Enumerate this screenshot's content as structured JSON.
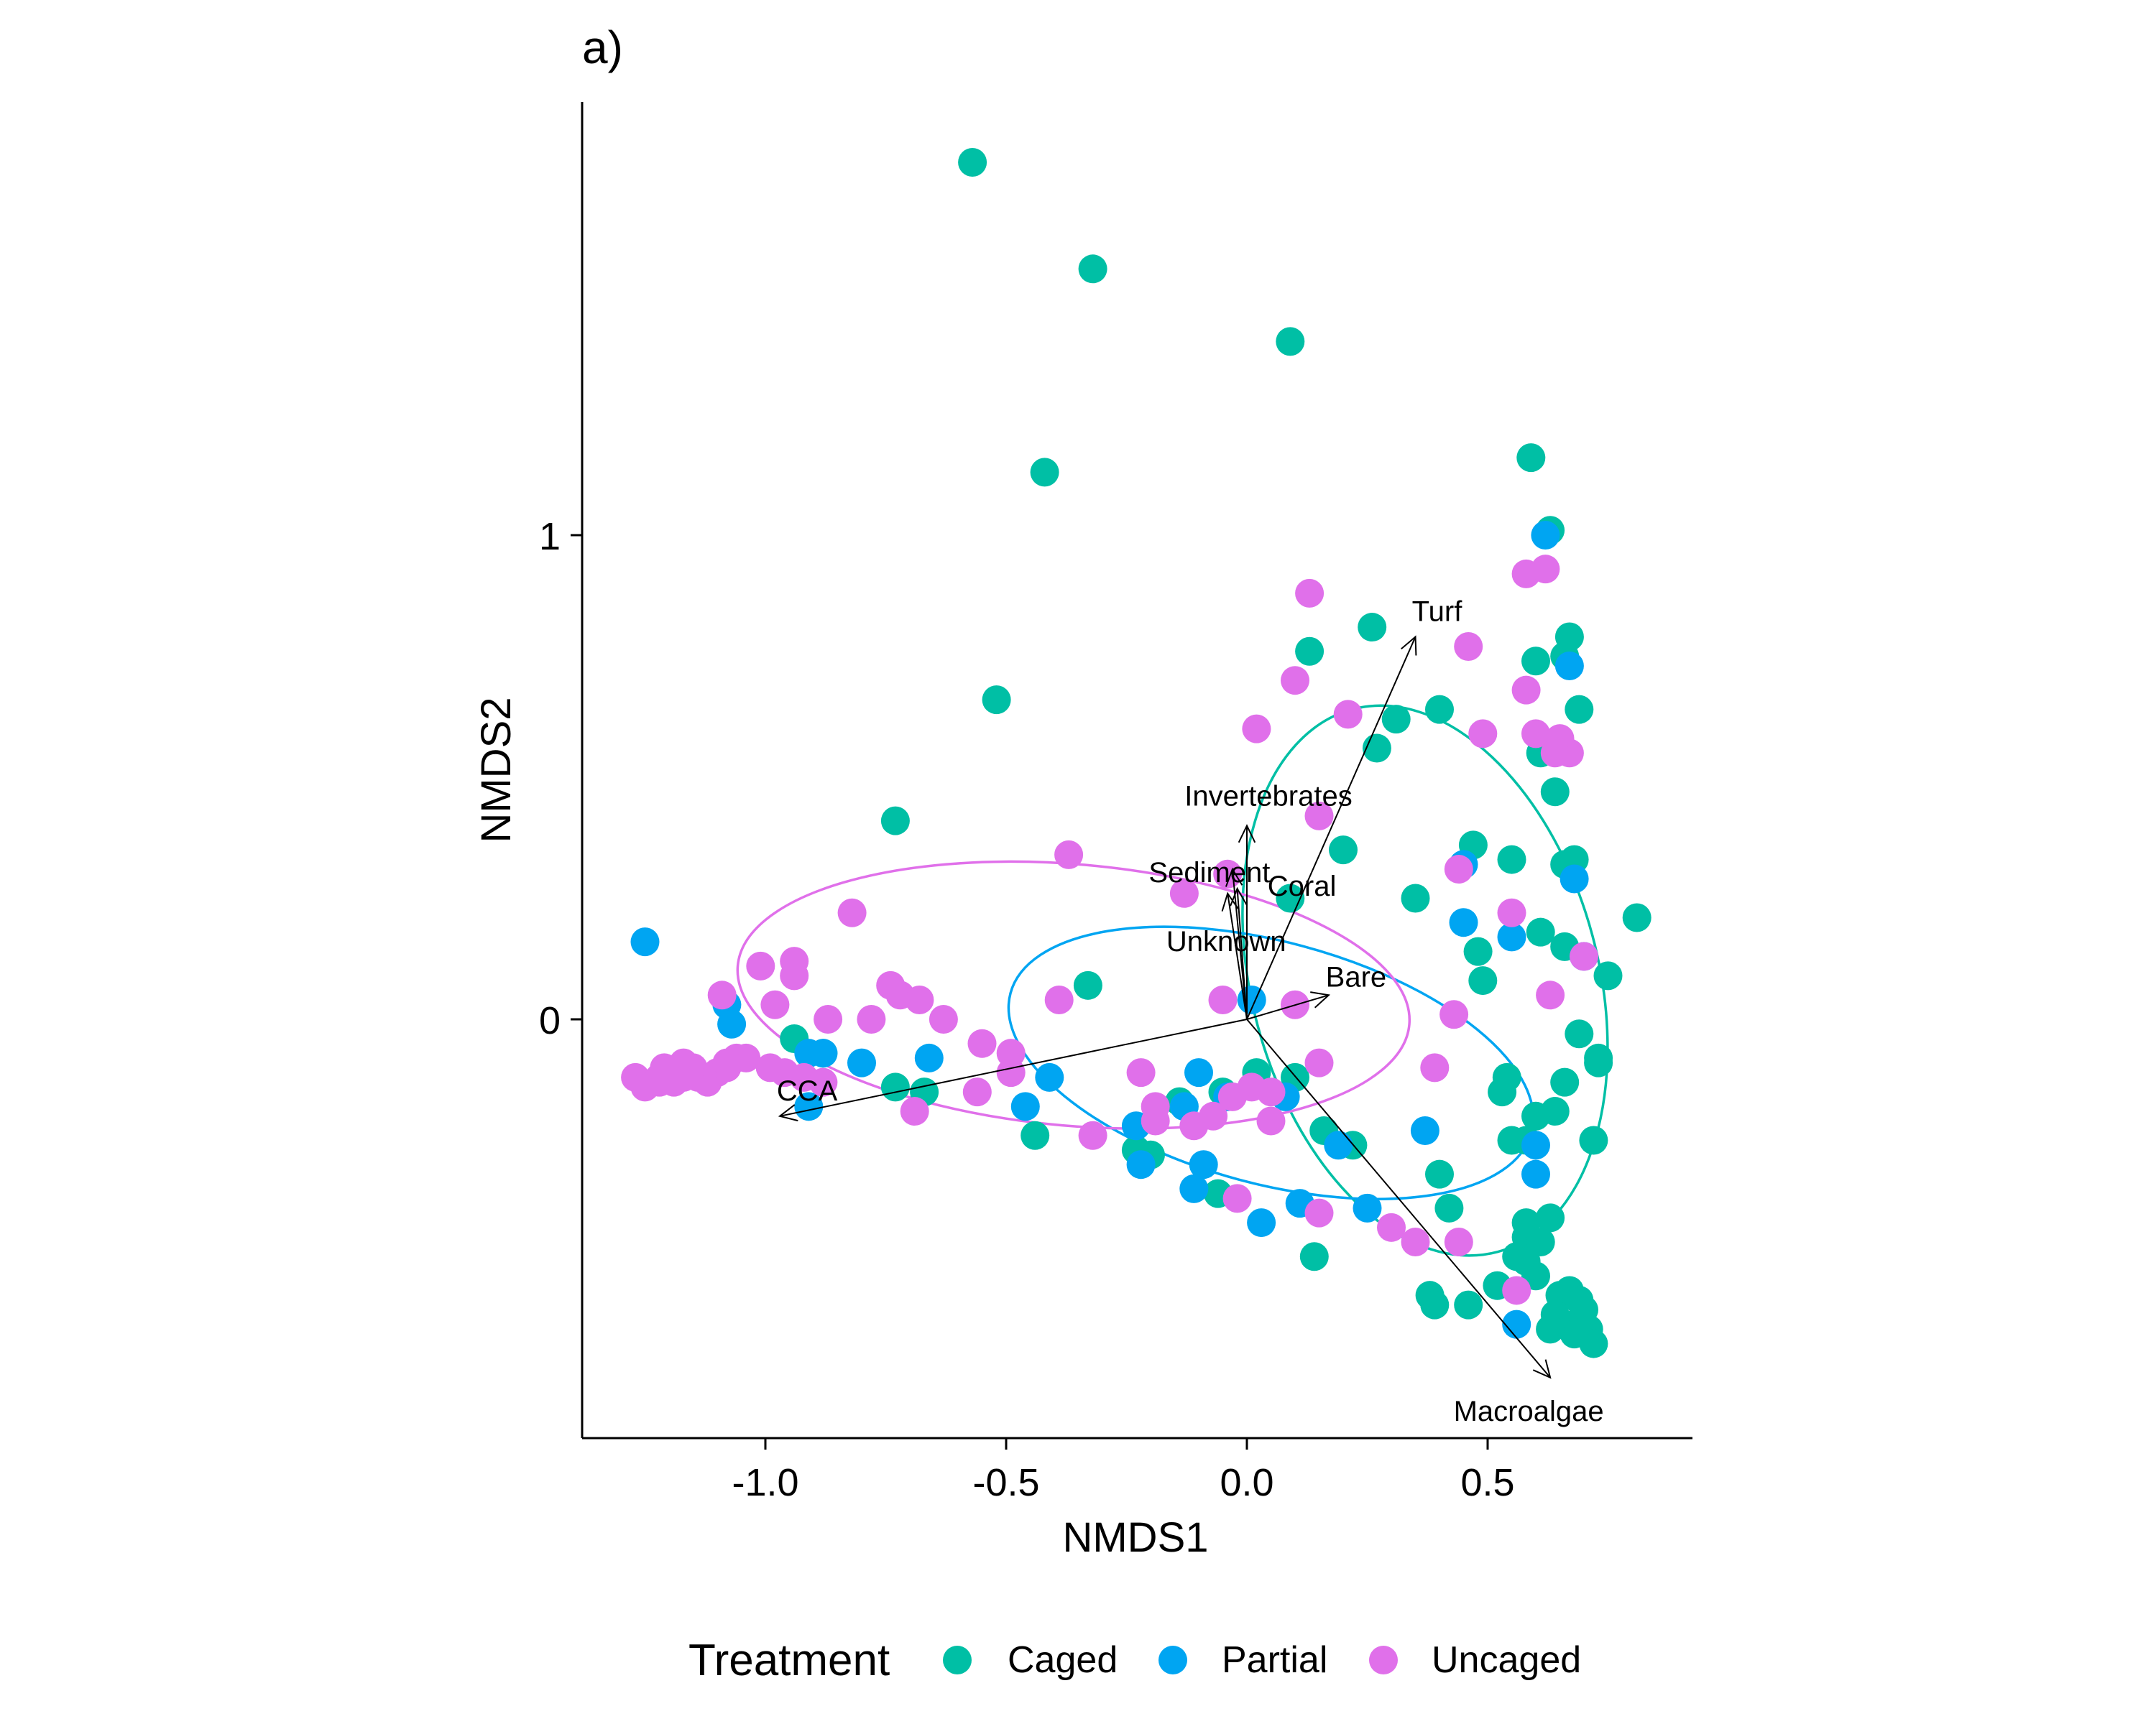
{
  "panel_label": "a)",
  "legend": {
    "title": "Treatment",
    "items": [
      {
        "label": "Caged",
        "color": "#00BFA5"
      },
      {
        "label": "Partial",
        "color": "#00A5F2"
      },
      {
        "label": "Uncaged",
        "color": "#E070EA"
      }
    ]
  },
  "chart_data": {
    "type": "scatter",
    "title": "",
    "xlabel": "NMDS1",
    "ylabel": "NMDS2",
    "xlim": [
      -1.38,
      0.92
    ],
    "ylim": [
      -0.87,
      1.9
    ],
    "x_ticks": [
      -1.0,
      -0.5,
      0.0,
      0.5
    ],
    "x_tick_labels": [
      "-1.0",
      "-0.5",
      "0.0",
      "0.5"
    ],
    "y_ticks": [
      0,
      1
    ],
    "y_tick_labels": [
      "0",
      "1"
    ],
    "grid": false,
    "legend_position": "bottom",
    "series": [
      {
        "name": "Caged",
        "color": "#00BFA5",
        "points": [
          [
            -0.57,
            1.77
          ],
          [
            -0.32,
            1.55
          ],
          [
            0.09,
            1.4
          ],
          [
            -0.42,
            1.13
          ],
          [
            0.59,
            1.16
          ],
          [
            0.63,
            1.01
          ],
          [
            -0.52,
            0.66
          ],
          [
            -0.73,
            0.41
          ],
          [
            0.13,
            0.76
          ],
          [
            0.26,
            0.81
          ],
          [
            0.6,
            0.74
          ],
          [
            0.66,
            0.75
          ],
          [
            0.67,
            0.79
          ],
          [
            0.31,
            0.62
          ],
          [
            0.4,
            0.64
          ],
          [
            0.69,
            0.64
          ],
          [
            0.27,
            0.56
          ],
          [
            0.61,
            0.55
          ],
          [
            0.64,
            0.47
          ],
          [
            0.2,
            0.35
          ],
          [
            0.47,
            0.36
          ],
          [
            0.55,
            0.33
          ],
          [
            0.66,
            0.32
          ],
          [
            0.68,
            0.33
          ],
          [
            0.09,
            0.25
          ],
          [
            0.35,
            0.25
          ],
          [
            0.61,
            0.18
          ],
          [
            0.81,
            0.21
          ],
          [
            0.48,
            0.14
          ],
          [
            0.66,
            0.15
          ],
          [
            0.49,
            0.08
          ],
          [
            0.75,
            0.09
          ],
          [
            -0.33,
            0.07
          ],
          [
            0.69,
            -0.03
          ],
          [
            0.73,
            -0.08
          ],
          [
            0.73,
            -0.09
          ],
          [
            0.54,
            -0.12
          ],
          [
            0.66,
            -0.13
          ],
          [
            0.53,
            -0.15
          ],
          [
            0.64,
            -0.19
          ],
          [
            0.6,
            -0.2
          ],
          [
            0.55,
            -0.25
          ],
          [
            0.58,
            -0.25
          ],
          [
            0.72,
            -0.25
          ],
          [
            -0.44,
            -0.24
          ],
          [
            -0.23,
            -0.27
          ],
          [
            -0.2,
            -0.28
          ],
          [
            0.16,
            -0.23
          ],
          [
            0.22,
            -0.26
          ],
          [
            0.4,
            -0.32
          ],
          [
            0.42,
            -0.39
          ],
          [
            -0.06,
            -0.36
          ],
          [
            0.58,
            -0.42
          ],
          [
            0.63,
            -0.41
          ],
          [
            0.58,
            -0.45
          ],
          [
            0.61,
            -0.46
          ],
          [
            0.56,
            -0.49
          ],
          [
            0.58,
            -0.5
          ],
          [
            0.14,
            -0.49
          ],
          [
            0.6,
            -0.53
          ],
          [
            0.52,
            -0.55
          ],
          [
            0.38,
            -0.57
          ],
          [
            0.39,
            -0.59
          ],
          [
            0.46,
            -0.59
          ],
          [
            0.65,
            -0.57
          ],
          [
            0.67,
            -0.56
          ],
          [
            0.69,
            -0.58
          ],
          [
            0.7,
            -0.6
          ],
          [
            0.64,
            -0.61
          ],
          [
            0.66,
            -0.63
          ],
          [
            0.68,
            -0.65
          ],
          [
            0.71,
            -0.64
          ],
          [
            0.72,
            -0.67
          ],
          [
            0.63,
            -0.64
          ],
          [
            -0.94,
            -0.04
          ],
          [
            -0.88,
            -0.07
          ],
          [
            -0.73,
            -0.14
          ],
          [
            -0.67,
            -0.15
          ],
          [
            -0.14,
            -0.17
          ],
          [
            0.1,
            -0.12
          ],
          [
            0.02,
            -0.11
          ],
          [
            -0.05,
            -0.15
          ]
        ]
      },
      {
        "name": "Partial",
        "color": "#00A5F2",
        "points": [
          [
            -1.25,
            0.16
          ],
          [
            0.62,
            1.0
          ],
          [
            0.67,
            0.73
          ],
          [
            0.45,
            0.32
          ],
          [
            0.68,
            0.29
          ],
          [
            0.45,
            0.2
          ],
          [
            0.55,
            0.17
          ],
          [
            0.7,
            0.13
          ],
          [
            0.01,
            0.04
          ],
          [
            -1.08,
            0.03
          ],
          [
            -1.07,
            -0.01
          ],
          [
            -0.91,
            -0.07
          ],
          [
            -0.88,
            -0.07
          ],
          [
            -0.8,
            -0.09
          ],
          [
            -0.66,
            -0.08
          ],
          [
            -0.41,
            -0.12
          ],
          [
            -0.46,
            -0.18
          ],
          [
            -0.1,
            -0.11
          ],
          [
            -0.13,
            -0.18
          ],
          [
            -0.23,
            -0.22
          ],
          [
            -0.22,
            -0.3
          ],
          [
            -0.09,
            -0.3
          ],
          [
            -0.11,
            -0.35
          ],
          [
            -0.04,
            -0.16
          ],
          [
            0.08,
            -0.16
          ],
          [
            0.19,
            -0.26
          ],
          [
            0.37,
            -0.23
          ],
          [
            0.6,
            -0.26
          ],
          [
            0.6,
            -0.32
          ],
          [
            0.11,
            -0.38
          ],
          [
            0.03,
            -0.42
          ],
          [
            0.25,
            -0.39
          ],
          [
            0.56,
            -0.63
          ],
          [
            -0.91,
            -0.18
          ]
        ]
      },
      {
        "name": "Uncaged",
        "color": "#E070EA",
        "points": [
          [
            0.13,
            0.88
          ],
          [
            0.58,
            0.92
          ],
          [
            0.62,
            0.93
          ],
          [
            0.46,
            0.77
          ],
          [
            0.1,
            0.7
          ],
          [
            0.58,
            0.68
          ],
          [
            0.02,
            0.6
          ],
          [
            0.21,
            0.63
          ],
          [
            0.49,
            0.59
          ],
          [
            0.6,
            0.59
          ],
          [
            0.65,
            0.58
          ],
          [
            0.67,
            0.55
          ],
          [
            0.64,
            0.55
          ],
          [
            0.15,
            0.42
          ],
          [
            -0.37,
            0.34
          ],
          [
            -0.13,
            0.26
          ],
          [
            -0.04,
            0.3
          ],
          [
            0.44,
            0.31
          ],
          [
            0.55,
            0.22
          ],
          [
            -0.82,
            0.22
          ],
          [
            -1.01,
            0.11
          ],
          [
            -0.94,
            0.12
          ],
          [
            -0.94,
            0.09
          ],
          [
            -0.74,
            0.07
          ],
          [
            -0.72,
            0.05
          ],
          [
            -0.68,
            0.04
          ],
          [
            -1.09,
            0.05
          ],
          [
            -0.98,
            0.03
          ],
          [
            -0.87,
            0.0
          ],
          [
            -0.78,
            0.0
          ],
          [
            -0.63,
            0.0
          ],
          [
            -0.39,
            0.04
          ],
          [
            -0.05,
            0.04
          ],
          [
            0.1,
            0.03
          ],
          [
            0.43,
            0.01
          ],
          [
            0.63,
            0.05
          ],
          [
            0.7,
            0.13
          ],
          [
            -0.55,
            -0.05
          ],
          [
            -0.49,
            -0.07
          ],
          [
            -0.49,
            -0.11
          ],
          [
            -0.56,
            -0.15
          ],
          [
            -0.22,
            -0.11
          ],
          [
            -0.19,
            -0.18
          ],
          [
            -0.19,
            -0.21
          ],
          [
            -0.11,
            -0.22
          ],
          [
            -0.07,
            -0.2
          ],
          [
            -0.03,
            -0.16
          ],
          [
            0.01,
            -0.14
          ],
          [
            0.05,
            -0.15
          ],
          [
            0.15,
            -0.09
          ],
          [
            0.39,
            -0.1
          ],
          [
            -0.69,
            -0.19
          ],
          [
            -0.32,
            -0.24
          ],
          [
            -0.02,
            -0.37
          ],
          [
            0.15,
            -0.4
          ],
          [
            0.3,
            -0.43
          ],
          [
            0.35,
            -0.46
          ],
          [
            0.44,
            -0.46
          ],
          [
            0.56,
            -0.56
          ],
          [
            0.05,
            -0.21
          ],
          [
            -1.27,
            -0.12
          ],
          [
            -1.25,
            -0.14
          ],
          [
            -1.22,
            -0.12
          ],
          [
            -1.21,
            -0.1
          ],
          [
            -1.19,
            -0.13
          ],
          [
            -1.17,
            -0.12
          ],
          [
            -1.15,
            -0.1
          ],
          [
            -1.14,
            -0.12
          ],
          [
            -1.12,
            -0.13
          ],
          [
            -1.1,
            -0.11
          ],
          [
            -1.08,
            -0.1
          ],
          [
            -1.06,
            -0.08
          ],
          [
            -1.04,
            -0.08
          ],
          [
            -0.99,
            -0.1
          ],
          [
            -0.96,
            -0.11
          ],
          [
            -0.92,
            -0.12
          ],
          [
            -0.88,
            -0.13
          ],
          [
            -1.22,
            -0.13
          ],
          [
            -1.17,
            -0.09
          ],
          [
            -1.08,
            -0.09
          ]
        ]
      }
    ],
    "ellipses": [
      {
        "series": "Caged",
        "center": [
          0.37,
          0.08
        ],
        "radii": [
          0.36,
          0.58
        ],
        "angle": -15
      },
      {
        "series": "Partial",
        "center": [
          0.05,
          -0.09
        ],
        "radii": [
          0.56,
          0.25
        ],
        "angle": 15
      },
      {
        "series": "Uncaged",
        "center": [
          -0.36,
          0.05
        ],
        "radii": [
          0.7,
          0.27
        ],
        "angle": 5
      }
    ],
    "vectors": [
      {
        "label": "Turf",
        "x": 0.35,
        "y": 0.79
      },
      {
        "label": "Invertebrates",
        "x": 0.0,
        "y": 0.4
      },
      {
        "label": "Sediment",
        "x": -0.03,
        "y": 0.31
      },
      {
        "label": "Coral",
        "x": -0.02,
        "y": 0.27
      },
      {
        "label": "Unknown",
        "x": -0.04,
        "y": 0.26
      },
      {
        "label": "Bare",
        "x": 0.17,
        "y": 0.05
      },
      {
        "label": "CCA",
        "x": -0.97,
        "y": -0.2
      },
      {
        "label": "Macroalgae",
        "x": 0.63,
        "y": -0.74
      }
    ]
  }
}
